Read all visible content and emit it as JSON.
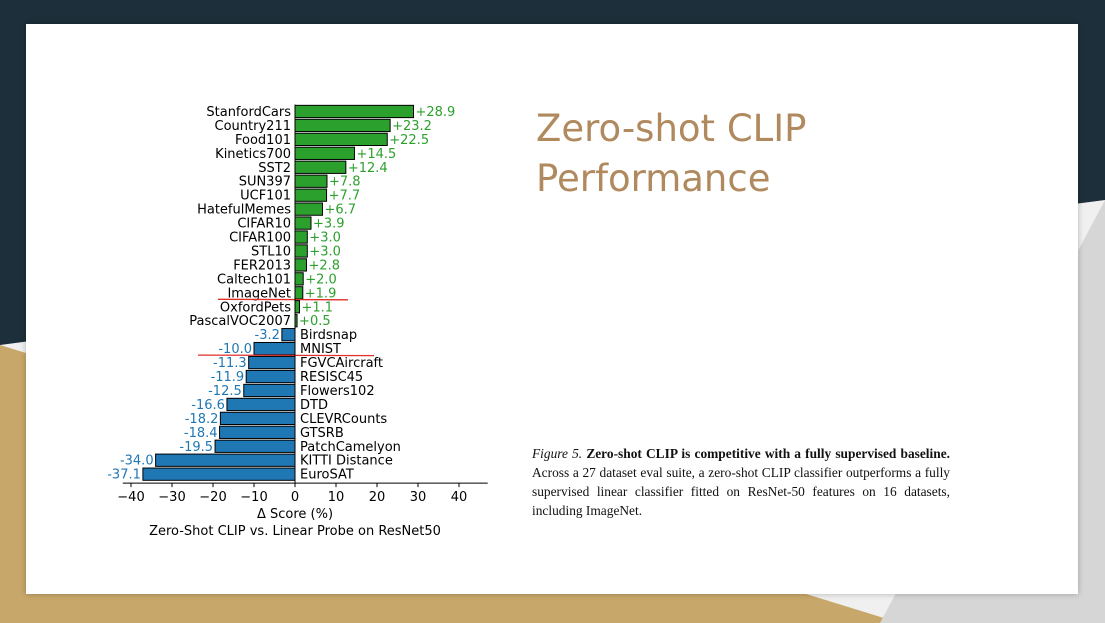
{
  "slide": {
    "title": "Zero-shot CLIP Performance",
    "caption": {
      "figure_label": "Figure 5.",
      "bold_text": "Zero-shot CLIP is competitive with a fully supervised baseline.",
      "body_text": "Across a 27 dataset eval suite, a zero-shot CLIP classifier outperforms a fully supervised linear classifier fitted on ResNet-50 features on 16 datasets, including ImageNet."
    }
  },
  "colors": {
    "positive": "#2ca02c",
    "negative": "#1f77b4",
    "underline": "#e0302c",
    "theme_dark": "#1d2f3a",
    "theme_gold": "#c8a86a",
    "title": "#b08a5e"
  },
  "chart_data": {
    "type": "bar",
    "orientation": "horizontal",
    "xlabel": "Δ Score (%)",
    "caption": "Zero-Shot CLIP vs. Linear Probe on ResNet50",
    "xlim": [
      -42,
      47
    ],
    "xticks": [
      -40,
      -30,
      -20,
      -10,
      0,
      10,
      20,
      30,
      40
    ],
    "grid": false,
    "categories": [
      "StanfordCars",
      "Country211",
      "Food101",
      "Kinetics700",
      "SST2",
      "SUN397",
      "UCF101",
      "HatefulMemes",
      "CIFAR10",
      "CIFAR100",
      "STL10",
      "FER2013",
      "Caltech101",
      "ImageNet",
      "OxfordPets",
      "PascalVOC2007",
      "Birdsnap",
      "MNIST",
      "FGVCAircraft",
      "RESISC45",
      "Flowers102",
      "DTD",
      "CLEVRCounts",
      "GTSRB",
      "PatchCamelyon",
      "KITTI Distance",
      "EuroSAT"
    ],
    "values": [
      28.9,
      23.2,
      22.5,
      14.5,
      12.4,
      7.8,
      7.7,
      6.7,
      3.9,
      3.0,
      3.0,
      2.8,
      2.0,
      1.9,
      1.1,
      0.5,
      -3.2,
      -10.0,
      -11.3,
      -11.9,
      -12.5,
      -16.6,
      -18.2,
      -18.4,
      -19.5,
      -34.0,
      -37.1
    ],
    "value_labels": [
      "+28.9",
      "+23.2",
      "+22.5",
      "+14.5",
      "+12.4",
      "+7.8",
      "+7.7",
      "+6.7",
      "+3.9",
      "+3.0",
      "+3.0",
      "+2.8",
      "+2.0",
      "+1.9",
      "+1.1",
      "+0.5",
      "-3.2",
      "-10.0",
      "-11.3",
      "-11.9",
      "-12.5",
      "-16.6",
      "-18.2",
      "-18.4",
      "-19.5",
      "-34.0",
      "-37.1"
    ],
    "highlighted": [
      "ImageNet",
      "MNIST"
    ]
  }
}
